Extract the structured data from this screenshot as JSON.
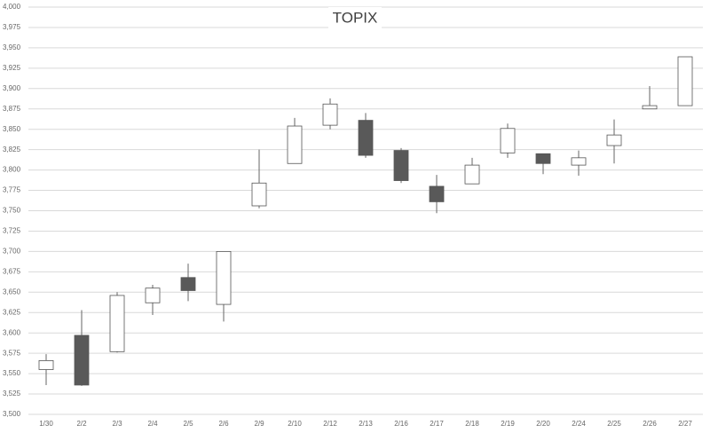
{
  "chart_data": {
    "type": "candlestick",
    "title": "TOPIX",
    "categories": [
      "1/30",
      "2/2",
      "2/3",
      "2/4",
      "2/5",
      "2/6",
      "2/9",
      "2/10",
      "2/12",
      "2/13",
      "2/16",
      "2/17",
      "2/18",
      "2/19",
      "2/20",
      "2/24",
      "2/25",
      "2/26",
      "2/27"
    ],
    "open": [
      3555,
      3597,
      3577,
      3637,
      3668,
      3635,
      3756,
      3808,
      3855,
      3861,
      3824,
      3780,
      3783,
      3821,
      3820,
      3806,
      3830,
      3875,
      3879
    ],
    "high": [
      3574,
      3628,
      3650,
      3659,
      3685,
      3700,
      3825,
      3864,
      3888,
      3870,
      3827,
      3794,
      3815,
      3857,
      3820,
      3824,
      3862,
      3903,
      3939
    ],
    "low": [
      3536,
      3535,
      3576,
      3622,
      3639,
      3614,
      3753,
      3808,
      3850,
      3815,
      3784,
      3747,
      3783,
      3815,
      3795,
      3793,
      3808,
      3875,
      3879
    ],
    "close": [
      3566,
      3536,
      3646,
      3655,
      3652,
      3700,
      3784,
      3854,
      3881,
      3818,
      3787,
      3761,
      3806,
      3851,
      3808,
      3815,
      3843,
      3879,
      3939
    ],
    "up_color": "#ffffff",
    "down_color": "#595959",
    "ylim": [
      3500,
      4000
    ],
    "yticks": [
      {
        "value": 3500,
        "label": "3,500"
      },
      {
        "value": 3525,
        "label": "3,525"
      },
      {
        "value": 3550,
        "label": "3,550"
      },
      {
        "value": 3575,
        "label": "3,575"
      },
      {
        "value": 3600,
        "label": "3,600"
      },
      {
        "value": 3625,
        "label": "3,625"
      },
      {
        "value": 3650,
        "label": "3,650"
      },
      {
        "value": 3675,
        "label": "3,675"
      },
      {
        "value": 3700,
        "label": "3,700"
      },
      {
        "value": 3725,
        "label": "3,725"
      },
      {
        "value": 3750,
        "label": "3,750"
      },
      {
        "value": 3775,
        "label": "3,775"
      },
      {
        "value": 3800,
        "label": "3,800"
      },
      {
        "value": 3825,
        "label": "3,825"
      },
      {
        "value": 3850,
        "label": "3,850"
      },
      {
        "value": 3875,
        "label": "3,875"
      },
      {
        "value": 3900,
        "label": "3,900"
      },
      {
        "value": 3925,
        "label": "3,925"
      },
      {
        "value": 3950,
        "label": "3,950"
      },
      {
        "value": 3975,
        "label": "3,975"
      },
      {
        "value": 4000,
        "label": "4,000"
      }
    ],
    "grid": true
  }
}
